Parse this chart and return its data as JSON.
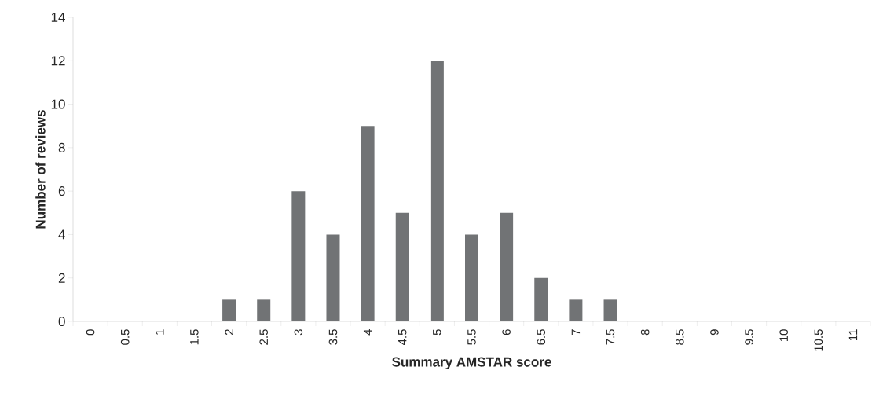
{
  "chart_data": {
    "type": "bar",
    "xlabel": "Summary AMSTAR score",
    "ylabel": "Number of reviews",
    "categories": [
      "0",
      "0.5",
      "1",
      "1.5",
      "2",
      "2.5",
      "3",
      "3.5",
      "4",
      "4.5",
      "5",
      "5.5",
      "6",
      "6.5",
      "7",
      "7.5",
      "8",
      "8.5",
      "9",
      "9.5",
      "10",
      "10.5",
      "11"
    ],
    "values": [
      0,
      0,
      0,
      0,
      1,
      1,
      6,
      4,
      9,
      5,
      12,
      4,
      5,
      2,
      1,
      1,
      0,
      0,
      0,
      0,
      0,
      0,
      0
    ],
    "color": "#717375",
    "ylim": [
      0,
      14
    ],
    "yticks": [
      0,
      2,
      4,
      6,
      8,
      10,
      12,
      14
    ]
  }
}
